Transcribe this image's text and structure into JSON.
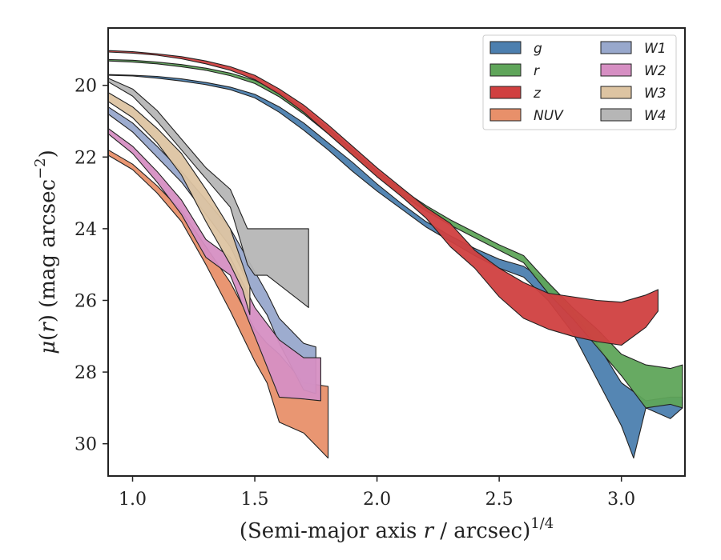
{
  "chart_data": {
    "type": "area",
    "xlabel": "(Semi-major axis r / arcsec)^1/4",
    "ylabel": "μ(r) (mag arcsec−2)",
    "xlim": [
      0.9,
      3.26
    ],
    "ylim": [
      30.9,
      18.4
    ],
    "y_inverted": true,
    "xticks": [
      "1.0",
      "1.5",
      "2.0",
      "2.5",
      "3.0"
    ],
    "yticks": [
      "20",
      "22",
      "24",
      "26",
      "28",
      "30"
    ],
    "legend_location": "top-right",
    "legend_columns": 2,
    "grid": false,
    "series": [
      {
        "name": "g",
        "color": "#4C7FAF",
        "upper": [
          [
            0.9,
            19.7
          ],
          [
            1.0,
            19.72
          ],
          [
            1.1,
            19.75
          ],
          [
            1.2,
            19.82
          ],
          [
            1.3,
            19.92
          ],
          [
            1.4,
            20.05
          ],
          [
            1.5,
            20.25
          ],
          [
            1.6,
            20.6
          ],
          [
            1.7,
            21.05
          ],
          [
            1.8,
            21.6
          ],
          [
            1.9,
            22.15
          ],
          [
            2.0,
            22.75
          ],
          [
            2.1,
            23.3
          ],
          [
            2.2,
            23.8
          ],
          [
            2.3,
            24.2
          ],
          [
            2.4,
            24.55
          ],
          [
            2.5,
            24.85
          ],
          [
            2.6,
            25.05
          ],
          [
            2.7,
            25.5
          ],
          [
            2.8,
            26.3
          ],
          [
            2.9,
            27.2
          ],
          [
            3.0,
            28.3
          ],
          [
            3.1,
            28.8
          ],
          [
            3.2,
            28.7
          ],
          [
            3.25,
            28.7
          ]
        ],
        "lower": [
          [
            0.9,
            19.72
          ],
          [
            1.0,
            19.74
          ],
          [
            1.1,
            19.8
          ],
          [
            1.2,
            19.88
          ],
          [
            1.3,
            19.98
          ],
          [
            1.4,
            20.12
          ],
          [
            1.5,
            20.35
          ],
          [
            1.6,
            20.75
          ],
          [
            1.7,
            21.25
          ],
          [
            1.8,
            21.8
          ],
          [
            1.9,
            22.4
          ],
          [
            2.0,
            22.95
          ],
          [
            2.1,
            23.45
          ],
          [
            2.2,
            23.95
          ],
          [
            2.3,
            24.35
          ],
          [
            2.4,
            24.75
          ],
          [
            2.5,
            25.1
          ],
          [
            2.6,
            25.35
          ],
          [
            2.7,
            26.0
          ],
          [
            2.8,
            26.9
          ],
          [
            2.9,
            28.2
          ],
          [
            3.0,
            29.5
          ],
          [
            3.05,
            30.4
          ],
          [
            3.1,
            29.0
          ],
          [
            3.2,
            29.3
          ],
          [
            3.25,
            29.0
          ]
        ]
      },
      {
        "name": "r",
        "color": "#5FA55A",
        "upper": [
          [
            0.9,
            19.28
          ],
          [
            1.0,
            19.3
          ],
          [
            1.1,
            19.35
          ],
          [
            1.2,
            19.42
          ],
          [
            1.3,
            19.52
          ],
          [
            1.4,
            19.66
          ],
          [
            1.5,
            19.86
          ],
          [
            1.6,
            20.2
          ],
          [
            1.7,
            20.65
          ],
          [
            1.8,
            21.2
          ],
          [
            1.9,
            21.8
          ],
          [
            2.0,
            22.4
          ],
          [
            2.1,
            22.9
          ],
          [
            2.2,
            23.35
          ],
          [
            2.3,
            23.75
          ],
          [
            2.4,
            24.1
          ],
          [
            2.5,
            24.45
          ],
          [
            2.6,
            24.75
          ],
          [
            2.7,
            25.5
          ],
          [
            2.8,
            26.2
          ],
          [
            2.9,
            26.8
          ],
          [
            3.0,
            27.5
          ],
          [
            3.1,
            27.8
          ],
          [
            3.2,
            27.9
          ],
          [
            3.25,
            27.8
          ]
        ],
        "lower": [
          [
            0.9,
            19.32
          ],
          [
            1.0,
            19.35
          ],
          [
            1.1,
            19.4
          ],
          [
            1.2,
            19.48
          ],
          [
            1.3,
            19.58
          ],
          [
            1.4,
            19.73
          ],
          [
            1.5,
            19.95
          ],
          [
            1.6,
            20.32
          ],
          [
            1.7,
            20.8
          ],
          [
            1.8,
            21.35
          ],
          [
            1.9,
            21.95
          ],
          [
            2.0,
            22.55
          ],
          [
            2.1,
            23.05
          ],
          [
            2.2,
            23.5
          ],
          [
            2.3,
            23.9
          ],
          [
            2.4,
            24.25
          ],
          [
            2.5,
            24.6
          ],
          [
            2.6,
            24.95
          ],
          [
            2.7,
            25.8
          ],
          [
            2.8,
            26.5
          ],
          [
            2.9,
            27.3
          ],
          [
            3.0,
            28.1
          ],
          [
            3.1,
            29.0
          ],
          [
            3.2,
            28.9
          ],
          [
            3.25,
            29.0
          ]
        ]
      },
      {
        "name": "z",
        "color": "#D04040",
        "upper": [
          [
            0.9,
            19.03
          ],
          [
            1.0,
            19.06
          ],
          [
            1.1,
            19.12
          ],
          [
            1.2,
            19.2
          ],
          [
            1.3,
            19.32
          ],
          [
            1.4,
            19.48
          ],
          [
            1.5,
            19.72
          ],
          [
            1.6,
            20.1
          ],
          [
            1.7,
            20.55
          ],
          [
            1.8,
            21.1
          ],
          [
            1.9,
            21.7
          ],
          [
            2.0,
            22.3
          ],
          [
            2.1,
            22.85
          ],
          [
            2.2,
            23.4
          ],
          [
            2.3,
            23.85
          ],
          [
            2.4,
            24.6
          ],
          [
            2.5,
            25.1
          ],
          [
            2.6,
            25.5
          ],
          [
            2.7,
            25.8
          ],
          [
            2.8,
            25.9
          ],
          [
            2.9,
            26.0
          ],
          [
            3.0,
            26.05
          ],
          [
            3.1,
            25.85
          ],
          [
            3.15,
            25.7
          ]
        ],
        "lower": [
          [
            0.9,
            19.07
          ],
          [
            1.0,
            19.1
          ],
          [
            1.1,
            19.16
          ],
          [
            1.2,
            19.26
          ],
          [
            1.3,
            19.4
          ],
          [
            1.4,
            19.58
          ],
          [
            1.5,
            19.84
          ],
          [
            1.6,
            20.25
          ],
          [
            1.7,
            20.75
          ],
          [
            1.8,
            21.35
          ],
          [
            1.9,
            21.95
          ],
          [
            2.0,
            22.55
          ],
          [
            2.1,
            23.1
          ],
          [
            2.2,
            23.7
          ],
          [
            2.3,
            24.5
          ],
          [
            2.4,
            25.1
          ],
          [
            2.5,
            25.9
          ],
          [
            2.6,
            26.5
          ],
          [
            2.7,
            26.8
          ],
          [
            2.8,
            27.0
          ],
          [
            2.9,
            27.15
          ],
          [
            3.0,
            27.25
          ],
          [
            3.1,
            26.75
          ],
          [
            3.15,
            26.3
          ]
        ]
      },
      {
        "name": "NUV",
        "color": "#E8906A",
        "upper": [
          [
            0.9,
            21.8
          ],
          [
            1.0,
            22.2
          ],
          [
            1.1,
            22.8
          ],
          [
            1.2,
            23.5
          ],
          [
            1.3,
            24.5
          ],
          [
            1.4,
            25.5
          ],
          [
            1.5,
            26.8
          ],
          [
            1.55,
            27.2
          ],
          [
            1.6,
            27.5
          ],
          [
            1.7,
            28.3
          ],
          [
            1.8,
            28.4
          ]
        ],
        "lower": [
          [
            0.9,
            21.95
          ],
          [
            1.0,
            22.35
          ],
          [
            1.1,
            23.0
          ],
          [
            1.2,
            23.8
          ],
          [
            1.3,
            25.0
          ],
          [
            1.4,
            26.3
          ],
          [
            1.5,
            27.7
          ],
          [
            1.55,
            28.3
          ],
          [
            1.6,
            29.4
          ],
          [
            1.7,
            29.7
          ],
          [
            1.8,
            30.4
          ]
        ]
      },
      {
        "name": "W1",
        "color": "#98A8CC",
        "upper": [
          [
            0.9,
            20.6
          ],
          [
            1.0,
            21.05
          ],
          [
            1.1,
            21.7
          ],
          [
            1.2,
            22.4
          ],
          [
            1.3,
            23.2
          ],
          [
            1.4,
            24.0
          ],
          [
            1.5,
            25.2
          ],
          [
            1.55,
            25.8
          ],
          [
            1.6,
            26.5
          ],
          [
            1.7,
            27.2
          ],
          [
            1.75,
            27.3
          ]
        ],
        "lower": [
          [
            0.9,
            20.8
          ],
          [
            1.0,
            21.3
          ],
          [
            1.1,
            22.0
          ],
          [
            1.2,
            22.7
          ],
          [
            1.3,
            23.6
          ],
          [
            1.4,
            24.5
          ],
          [
            1.5,
            25.9
          ],
          [
            1.55,
            26.4
          ],
          [
            1.6,
            27.2
          ],
          [
            1.7,
            28.5
          ],
          [
            1.75,
            28.6
          ]
        ]
      },
      {
        "name": "W2",
        "color": "#D68FC3",
        "upper": [
          [
            0.9,
            21.2
          ],
          [
            1.0,
            21.7
          ],
          [
            1.1,
            22.4
          ],
          [
            1.2,
            23.2
          ],
          [
            1.3,
            24.3
          ],
          [
            1.4,
            24.8
          ],
          [
            1.5,
            26.2
          ],
          [
            1.6,
            27.1
          ],
          [
            1.7,
            27.6
          ],
          [
            1.77,
            27.6
          ]
        ],
        "lower": [
          [
            0.9,
            21.35
          ],
          [
            1.0,
            21.9
          ],
          [
            1.1,
            22.7
          ],
          [
            1.2,
            23.6
          ],
          [
            1.3,
            24.8
          ],
          [
            1.4,
            25.3
          ],
          [
            1.5,
            27.0
          ],
          [
            1.6,
            28.7
          ],
          [
            1.7,
            28.75
          ],
          [
            1.77,
            28.8
          ]
        ]
      },
      {
        "name": "W3",
        "color": "#DDC4A2",
        "upper": [
          [
            0.9,
            20.2
          ],
          [
            1.0,
            20.6
          ],
          [
            1.1,
            21.2
          ],
          [
            1.2,
            21.9
          ],
          [
            1.3,
            22.9
          ],
          [
            1.4,
            24.0
          ],
          [
            1.45,
            25.0
          ],
          [
            1.48,
            25.6
          ]
        ],
        "lower": [
          [
            0.9,
            20.45
          ],
          [
            1.0,
            20.9
          ],
          [
            1.1,
            21.6
          ],
          [
            1.2,
            22.5
          ],
          [
            1.3,
            23.8
          ],
          [
            1.4,
            25.0
          ],
          [
            1.45,
            25.7
          ],
          [
            1.48,
            26.4
          ]
        ]
      },
      {
        "name": "W4",
        "color": "#B6B6B6",
        "upper": [
          [
            0.9,
            19.8
          ],
          [
            1.0,
            20.1
          ],
          [
            1.1,
            20.7
          ],
          [
            1.2,
            21.5
          ],
          [
            1.3,
            22.3
          ],
          [
            1.4,
            22.9
          ],
          [
            1.47,
            24.0
          ],
          [
            1.5,
            24.0
          ],
          [
            1.55,
            24.0
          ],
          [
            1.72,
            24.0
          ]
        ],
        "lower": [
          [
            0.9,
            19.9
          ],
          [
            1.0,
            20.3
          ],
          [
            1.1,
            21.0
          ],
          [
            1.2,
            21.8
          ],
          [
            1.3,
            22.6
          ],
          [
            1.4,
            23.4
          ],
          [
            1.47,
            25.0
          ],
          [
            1.5,
            25.3
          ],
          [
            1.55,
            25.3
          ],
          [
            1.72,
            26.2
          ]
        ]
      }
    ]
  }
}
